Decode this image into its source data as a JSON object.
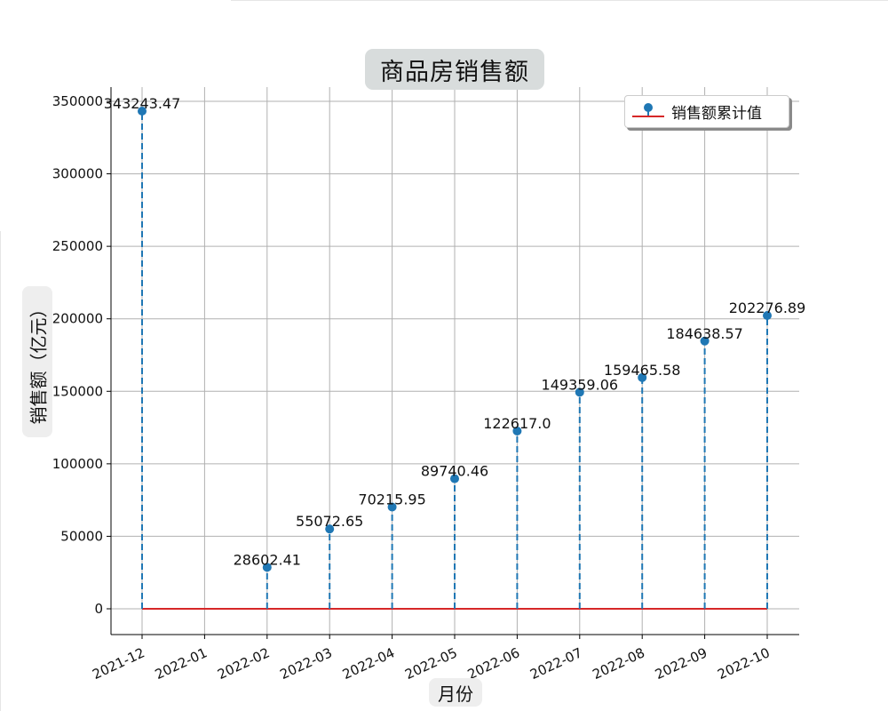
{
  "chart_data": {
    "type": "stem",
    "title": "商品房销售额",
    "xlabel": "月份",
    "ylabel": "销售额（亿元）",
    "categories": [
      "2021-12",
      "2022-01",
      "2022-02",
      "2022-03",
      "2022-04",
      "2022-05",
      "2022-06",
      "2022-07",
      "2022-08",
      "2022-09",
      "2022-10"
    ],
    "series": [
      {
        "name": "销售额累计值",
        "points": [
          {
            "x": "2021-12",
            "y": 343243.47,
            "label": "343243.47"
          },
          {
            "x": "2022-02",
            "y": 28602.41,
            "label": "28602.41"
          },
          {
            "x": "2022-03",
            "y": 55072.65,
            "label": "55072.65"
          },
          {
            "x": "2022-04",
            "y": 70215.95,
            "label": "70215.95"
          },
          {
            "x": "2022-05",
            "y": 89740.46,
            "label": "89740.46"
          },
          {
            "x": "2022-06",
            "y": 122617.0,
            "label": "122617.0"
          },
          {
            "x": "2022-07",
            "y": 149359.06,
            "label": "149359.06"
          },
          {
            "x": "2022-08",
            "y": 159465.58,
            "label": "159465.58"
          },
          {
            "x": "2022-09",
            "y": 184638.57,
            "label": "184638.57"
          },
          {
            "x": "2022-10",
            "y": 202276.89,
            "label": "202276.89"
          }
        ]
      }
    ],
    "yticks": [
      0,
      50000,
      100000,
      150000,
      200000,
      250000,
      300000,
      350000
    ],
    "ylim": [
      -17000,
      360000
    ],
    "grid": true,
    "legend_position": "top-right",
    "colors": {
      "stem": "#1f77b4",
      "baseline": "#d62728",
      "grid": "#b0b0b0"
    }
  }
}
